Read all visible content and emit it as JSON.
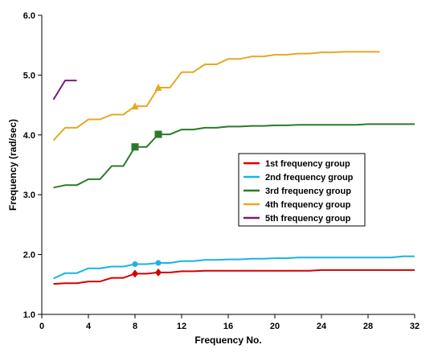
{
  "chart_data": {
    "type": "line",
    "title": "",
    "xlabel": "Frequency No.",
    "ylabel": "Frequency (rad/sec)",
    "xlim": [
      0,
      32
    ],
    "ylim": [
      1.0,
      6.0
    ],
    "x_ticks": [
      0,
      4,
      8,
      12,
      16,
      20,
      24,
      28,
      32
    ],
    "y_ticks": [
      1.0,
      2.0,
      3.0,
      4.0,
      5.0,
      6.0
    ],
    "x_tick_labels": [
      "0",
      "4",
      "8",
      "12",
      "16",
      "20",
      "24",
      "28",
      "32"
    ],
    "y_tick_labels": [
      "1.0",
      "2.0",
      "3.0",
      "4.0",
      "5.0",
      "6.0"
    ],
    "grid": false,
    "legend_position": "right",
    "series": [
      {
        "name": "1st frequency group",
        "color": "#d40000",
        "x": [
          1,
          2,
          3,
          4,
          5,
          6,
          7,
          8,
          9,
          10,
          11,
          12,
          13,
          14,
          15,
          16,
          17,
          18,
          19,
          20,
          21,
          22,
          23,
          24,
          25,
          26,
          27,
          28,
          29,
          30,
          31,
          32
        ],
        "y": [
          1.51,
          1.52,
          1.52,
          1.55,
          1.55,
          1.61,
          1.61,
          1.68,
          1.68,
          1.7,
          1.7,
          1.72,
          1.72,
          1.73,
          1.73,
          1.73,
          1.73,
          1.73,
          1.73,
          1.73,
          1.73,
          1.73,
          1.73,
          1.74,
          1.74,
          1.74,
          1.74,
          1.74,
          1.74,
          1.74,
          1.74,
          1.74
        ],
        "markers": [
          {
            "x": 8,
            "y": 1.68,
            "shape": "diamond"
          },
          {
            "x": 10,
            "y": 1.7,
            "shape": "diamond"
          }
        ]
      },
      {
        "name": "2nd frequency group",
        "color": "#1ab2e6",
        "x": [
          1,
          2,
          3,
          4,
          5,
          6,
          7,
          8,
          9,
          10,
          11,
          12,
          13,
          14,
          15,
          16,
          17,
          18,
          19,
          20,
          21,
          22,
          23,
          24,
          25,
          26,
          27,
          28,
          29,
          30,
          31,
          32
        ],
        "y": [
          1.6,
          1.69,
          1.69,
          1.77,
          1.77,
          1.8,
          1.8,
          1.84,
          1.84,
          1.86,
          1.86,
          1.89,
          1.89,
          1.91,
          1.91,
          1.92,
          1.92,
          1.93,
          1.93,
          1.94,
          1.94,
          1.95,
          1.95,
          1.95,
          1.95,
          1.95,
          1.95,
          1.95,
          1.95,
          1.95,
          1.97,
          1.97
        ],
        "markers": [
          {
            "x": 8,
            "y": 1.84,
            "shape": "circle"
          },
          {
            "x": 10,
            "y": 1.86,
            "shape": "circle"
          }
        ]
      },
      {
        "name": "3rd frequency group",
        "color": "#2a7a2a",
        "x": [
          1,
          2,
          3,
          4,
          5,
          6,
          7,
          8,
          9,
          10,
          11,
          12,
          13,
          14,
          15,
          16,
          17,
          18,
          19,
          20,
          21,
          22,
          23,
          24,
          25,
          26,
          27,
          28,
          29,
          30,
          31,
          32
        ],
        "y": [
          3.12,
          3.16,
          3.16,
          3.26,
          3.26,
          3.48,
          3.48,
          3.8,
          3.8,
          4.01,
          4.01,
          4.09,
          4.09,
          4.12,
          4.12,
          4.14,
          4.14,
          4.15,
          4.15,
          4.16,
          4.16,
          4.17,
          4.17,
          4.17,
          4.17,
          4.17,
          4.17,
          4.18,
          4.18,
          4.18,
          4.18,
          4.18
        ],
        "markers": [
          {
            "x": 8,
            "y": 3.8,
            "shape": "square"
          },
          {
            "x": 10,
            "y": 4.01,
            "shape": "square"
          }
        ]
      },
      {
        "name": "4th frequency group",
        "color": "#e6a820",
        "x": [
          1,
          2,
          3,
          4,
          5,
          6,
          7,
          8,
          9,
          10,
          11,
          12,
          13,
          14,
          15,
          16,
          17,
          18,
          19,
          20,
          21,
          22,
          23,
          24,
          25,
          26,
          27,
          28,
          29
        ],
        "y": [
          3.91,
          4.12,
          4.12,
          4.26,
          4.26,
          4.34,
          4.34,
          4.48,
          4.48,
          4.79,
          4.79,
          5.05,
          5.05,
          5.18,
          5.18,
          5.27,
          5.27,
          5.31,
          5.31,
          5.34,
          5.34,
          5.36,
          5.36,
          5.38,
          5.38,
          5.39,
          5.39,
          5.39,
          5.39
        ],
        "markers": [
          {
            "x": 8,
            "y": 4.48,
            "shape": "triangle"
          },
          {
            "x": 10,
            "y": 4.79,
            "shape": "triangle"
          }
        ]
      },
      {
        "name": "5th frequency group",
        "color": "#7a1a7a",
        "x": [
          1,
          2,
          3
        ],
        "y": [
          4.59,
          4.91,
          4.91
        ],
        "markers": []
      }
    ]
  }
}
